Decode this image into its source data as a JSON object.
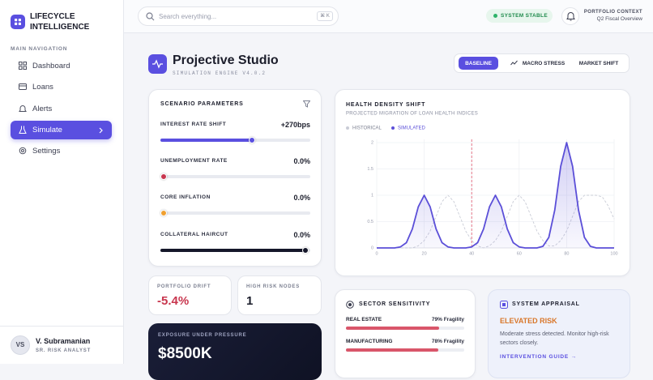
{
  "sidebar": {
    "brand": "LIFECYCLE INTELLIGENCE",
    "nav_label": "MAIN NAVIGATION",
    "nav": [
      "Dashboard",
      "Loans",
      "Alerts",
      "Simulate",
      "Settings"
    ],
    "user": {
      "initials": "VS",
      "name": "V. Subramanian",
      "role": "SR. RISK ANALYST"
    }
  },
  "topbar": {
    "search_placeholder": "Search everything...",
    "shortcut": "⌘ K",
    "status": "SYSTEM STABLE",
    "context_label": "PORTFOLIO CONTEXT",
    "context_value": "Q2 Fiscal Overview"
  },
  "header": {
    "title": "Projective Studio",
    "subtitle": "SIMULATION ENGINE V4.0.2",
    "tabs": [
      "BASELINE",
      "MACRO STRESS",
      "MARKET SHIFT"
    ]
  },
  "parameters": {
    "title": "SCENARIO PARAMETERS",
    "items": [
      {
        "label": "INTEREST RATE SHIFT",
        "value": "+270bps"
      },
      {
        "label": "UNEMPLOYMENT RATE",
        "value": "0.0%"
      },
      {
        "label": "CORE INFLATION",
        "value": "0.0%"
      },
      {
        "label": "COLLATERAL HAIRCUT",
        "value": "0.0%"
      }
    ]
  },
  "stats": [
    {
      "label": "PORTFOLIO DRIFT",
      "value": "-5.4%"
    },
    {
      "label": "HIGH RISK NODES",
      "value": "1"
    }
  ],
  "exposure": {
    "label": "EXPOSURE UNDER PRESSURE",
    "value": "$8500K"
  },
  "chart_data": {
    "type": "line",
    "title": "HEALTH DENSITY SHIFT",
    "subtitle": "PROJECTED MIGRATION OF LOAN HEALTH INDICES",
    "x": [
      0,
      2.5,
      5,
      7.5,
      10,
      12.5,
      15,
      17.5,
      20,
      22.5,
      25,
      27.5,
      30,
      32.5,
      35,
      37.5,
      40,
      42.5,
      45,
      47.5,
      50,
      52.5,
      55,
      57.5,
      60,
      62.5,
      65,
      67.5,
      70,
      72.5,
      75,
      77.5,
      80,
      82.5,
      85,
      87.5,
      90,
      92.5,
      95,
      97.5,
      100
    ],
    "series": [
      {
        "name": "HISTORICAL",
        "color": "#c9ccd6",
        "dashed": true,
        "values": [
          0,
          0,
          0,
          0,
          0,
          0,
          0,
          0.04,
          0.14,
          0.32,
          0.6,
          0.88,
          1,
          0.88,
          0.6,
          0.32,
          0.14,
          0.04,
          0,
          0.04,
          0.14,
          0.32,
          0.6,
          0.88,
          1,
          0.88,
          0.6,
          0.32,
          0.14,
          0.04,
          0.04,
          0.14,
          0.32,
          0.6,
          0.88,
          1,
          1,
          1,
          0.97,
          0.8,
          0.55
        ]
      },
      {
        "name": "SIMULATED",
        "color": "#5b4fd8",
        "filled": true,
        "values": [
          0,
          0,
          0,
          0,
          0.02,
          0.1,
          0.36,
          0.78,
          1,
          0.78,
          0.36,
          0.1,
          0.02,
          0,
          0,
          0,
          0.02,
          0.1,
          0.36,
          0.78,
          1,
          0.78,
          0.36,
          0.1,
          0.02,
          0,
          0,
          0,
          0.03,
          0.2,
          0.72,
          1.55,
          2,
          1.55,
          0.72,
          0.2,
          0.03,
          0,
          0,
          0,
          0
        ]
      }
    ],
    "xlim": [
      0,
      100
    ],
    "ylim": [
      0,
      2
    ],
    "xticks": [
      0,
      20,
      40,
      60,
      80,
      100
    ],
    "yticks": [
      0,
      0.5,
      1,
      1.5,
      2
    ],
    "grid": true,
    "reference_x": 40,
    "reference_color": "#e0566b"
  },
  "sectors": {
    "title": "SECTOR SENSITIVITY",
    "rows": [
      {
        "name": "REAL ESTATE",
        "value": 79,
        "label": "79% Fragility"
      },
      {
        "name": "MANUFACTURING",
        "value": 78,
        "label": "78% Fragility"
      }
    ]
  },
  "appraisal": {
    "title": "SYSTEM APPRAISAL",
    "status": "ELEVATED RISK",
    "text": "Moderate stress detected. Monitor high-risk sectors closely.",
    "link": "INTERVENTION GUIDE →"
  }
}
